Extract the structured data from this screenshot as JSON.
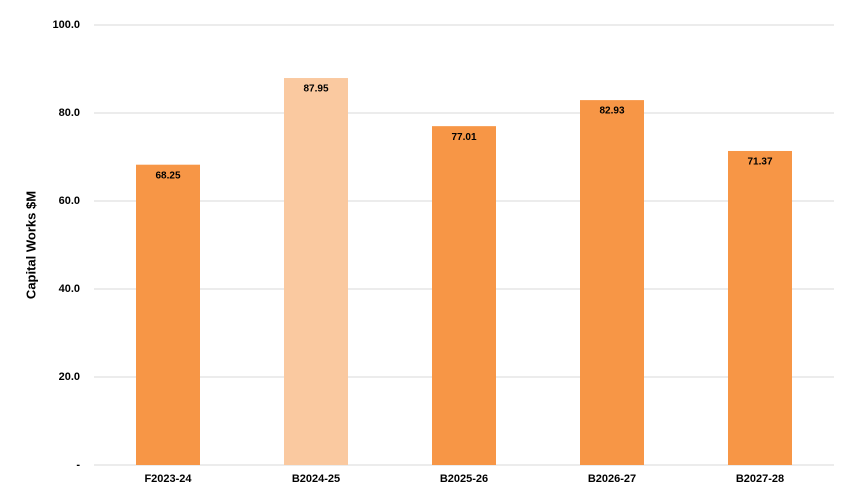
{
  "chart_data": {
    "type": "bar",
    "y_label": "Capital Works $M",
    "categories": [
      "F2023-24",
      "B2024-25",
      "B2025-26",
      "B2026-27",
      "B2027-28"
    ],
    "values": [
      68.25,
      87.95,
      77.01,
      82.93,
      71.37
    ],
    "colors": [
      "#f79646",
      "#fac9a0",
      "#f79646",
      "#f79646",
      "#f79646"
    ],
    "ylim": [
      0,
      100
    ],
    "yticks": [
      {
        "value": 0,
        "label": "-"
      },
      {
        "value": 20,
        "label": "20.0"
      },
      {
        "value": 40,
        "label": "40.0"
      },
      {
        "value": 60,
        "label": "60.0"
      },
      {
        "value": 80,
        "label": "80.0"
      },
      {
        "value": 100,
        "label": "100.0"
      }
    ],
    "grid": true
  }
}
